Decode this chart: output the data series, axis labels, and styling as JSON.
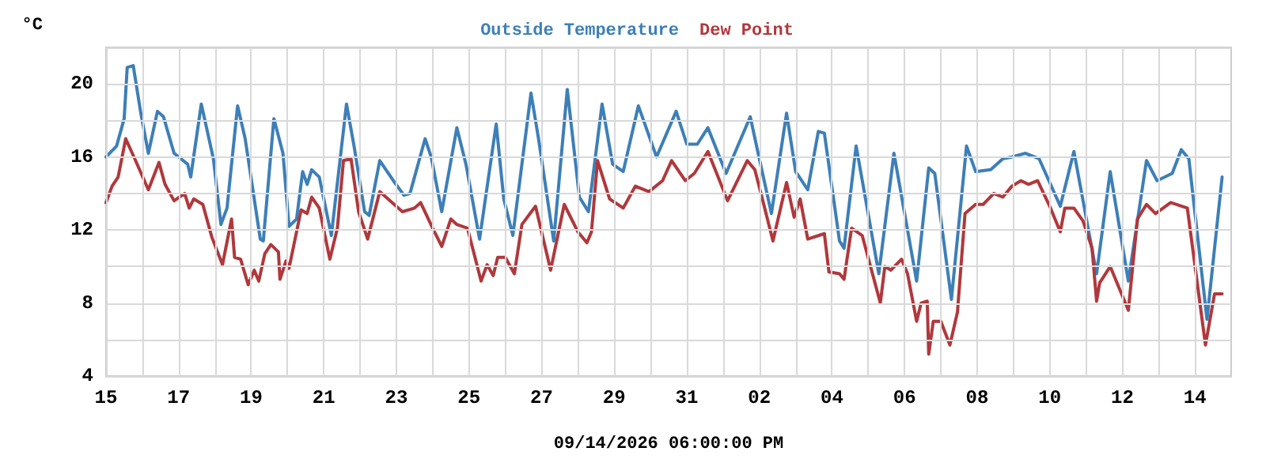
{
  "chart_data": {
    "type": "line",
    "ylabel": "°C",
    "xlabel": "09/14/2026 06:00:00 PM",
    "legend": "top",
    "grid": true,
    "marker": "none",
    "line_style": "solid",
    "xlim": [
      "2026-08-15",
      "2026-09-15"
    ],
    "xticks": [
      {
        "value": "2026-08-15",
        "label": "15"
      },
      {
        "value": "2026-08-16",
        "label": null
      },
      {
        "value": "2026-08-17",
        "label": "17"
      },
      {
        "value": "2026-08-18",
        "label": null
      },
      {
        "value": "2026-08-19",
        "label": "19"
      },
      {
        "value": "2026-08-20",
        "label": null
      },
      {
        "value": "2026-08-21",
        "label": "21"
      },
      {
        "value": "2026-08-22",
        "label": null
      },
      {
        "value": "2026-08-23",
        "label": "23"
      },
      {
        "value": "2026-08-24",
        "label": null
      },
      {
        "value": "2026-08-25",
        "label": "25"
      },
      {
        "value": "2026-08-26",
        "label": null
      },
      {
        "value": "2026-08-27",
        "label": "27"
      },
      {
        "value": "2026-08-28",
        "label": null
      },
      {
        "value": "2026-08-29",
        "label": "29"
      },
      {
        "value": "2026-08-30",
        "label": null
      },
      {
        "value": "2026-08-31",
        "label": "31"
      },
      {
        "value": "2026-09-01",
        "label": null
      },
      {
        "value": "2026-09-02",
        "label": "02"
      },
      {
        "value": "2026-09-03",
        "label": null
      },
      {
        "value": "2026-09-04",
        "label": "04"
      },
      {
        "value": "2026-09-05",
        "label": null
      },
      {
        "value": "2026-09-06",
        "label": "06"
      },
      {
        "value": "2026-09-07",
        "label": null
      },
      {
        "value": "2026-09-08",
        "label": "08"
      },
      {
        "value": "2026-09-09",
        "label": null
      },
      {
        "value": "2026-09-10",
        "label": "10"
      },
      {
        "value": "2026-09-11",
        "label": null
      },
      {
        "value": "2026-09-12",
        "label": "12"
      },
      {
        "value": "2026-09-13",
        "label": null
      },
      {
        "value": "2026-09-14",
        "label": "14"
      }
    ],
    "ylim": [
      4,
      22
    ],
    "yticks": [
      4,
      {
        "value": 6,
        "label": null
      },
      8,
      {
        "value": 10,
        "label": null
      },
      12,
      {
        "value": 14,
        "label": null
      },
      16,
      {
        "value": 18,
        "label": null
      },
      20,
      {
        "value": 22,
        "label": null
      }
    ],
    "series": [
      {
        "name": "Outside Temperature",
        "color": "#3d7fb8",
        "x": [
          "2026-08-15T00:00",
          "2026-08-15T07:00",
          "2026-08-15T12:00",
          "2026-08-15T14:00",
          "2026-08-15T18:00",
          "2026-08-15T23:00",
          "2026-08-16T04:00",
          "2026-08-16T10:00",
          "2026-08-16T14:00",
          "2026-08-16T21:00",
          "2026-08-17T06:00",
          "2026-08-17T08:00",
          "2026-08-17T15:00",
          "2026-08-17T23:00",
          "2026-08-18T04:00",
          "2026-08-18T08:00",
          "2026-08-18T15:00",
          "2026-08-18T20:00",
          "2026-08-19T06:00",
          "2026-08-19T08:00",
          "2026-08-19T15:00",
          "2026-08-19T21:00",
          "2026-08-20T01:00",
          "2026-08-20T06:00",
          "2026-08-20T10:00",
          "2026-08-20T13:00",
          "2026-08-20T16:00",
          "2026-08-20T21:00",
          "2026-08-21T05:00",
          "2026-08-21T15:00",
          "2026-08-21T20:00",
          "2026-08-22T03:00",
          "2026-08-22T06:00",
          "2026-08-22T13:00",
          "2026-08-22T22:00",
          "2026-08-23T05:00",
          "2026-08-23T09:00",
          "2026-08-23T19:00",
          "2026-08-23T23:00",
          "2026-08-24T06:00",
          "2026-08-24T16:00",
          "2026-08-24T22:00",
          "2026-08-25T07:00",
          "2026-08-25T18:00",
          "2026-08-25T23:00",
          "2026-08-26T05:00",
          "2026-08-26T17:00",
          "2026-08-26T22:00",
          "2026-08-27T08:00",
          "2026-08-27T17:00",
          "2026-08-28T01:00",
          "2026-08-28T07:00",
          "2026-08-28T16:00",
          "2026-08-28T23:00",
          "2026-08-29T06:00",
          "2026-08-29T16:00",
          "2026-08-30T04:00",
          "2026-08-30T17:00",
          "2026-08-31T00:00",
          "2026-08-31T07:00",
          "2026-08-31T14:00",
          "2026-09-01T02:00",
          "2026-09-01T18:00",
          "2026-09-02T00:00",
          "2026-09-02T08:00",
          "2026-09-02T18:00",
          "2026-09-03T00:00",
          "2026-09-03T08:00",
          "2026-09-03T15:00",
          "2026-09-03T19:00",
          "2026-09-04T05:00",
          "2026-09-04T08:00",
          "2026-09-04T16:00",
          "2026-09-05T07:00",
          "2026-09-05T17:00",
          "2026-09-06T08:00",
          "2026-09-06T16:00",
          "2026-09-06T20:00",
          "2026-09-07T07:00",
          "2026-09-07T17:00",
          "2026-09-07T23:00",
          "2026-09-08T09:00",
          "2026-09-08T17:00",
          "2026-09-08T23:00",
          "2026-09-09T08:00",
          "2026-09-09T17:00",
          "2026-09-10T07:00",
          "2026-09-10T16:00",
          "2026-09-11T07:00",
          "2026-09-11T16:00",
          "2026-09-12T04:00",
          "2026-09-12T16:00",
          "2026-09-12T23:00",
          "2026-09-13T09:00",
          "2026-09-13T15:00",
          "2026-09-13T20:00",
          "2026-09-14T08:00",
          "2026-09-14T18:00"
        ],
        "values": [
          16.0,
          16.6,
          18.1,
          20.9,
          21.0,
          18.4,
          16.2,
          18.5,
          18.2,
          16.2,
          15.6,
          14.9,
          18.9,
          15.9,
          12.3,
          13.2,
          18.8,
          17.0,
          11.5,
          11.4,
          18.1,
          16.2,
          12.2,
          12.6,
          15.2,
          14.5,
          15.3,
          14.9,
          11.7,
          18.9,
          16.6,
          13.0,
          12.8,
          15.8,
          14.7,
          13.9,
          14.0,
          17.0,
          16.0,
          13.0,
          17.6,
          15.6,
          11.5,
          17.8,
          13.7,
          11.7,
          19.5,
          17.0,
          11.4,
          19.7,
          13.8,
          13.0,
          18.9,
          15.6,
          15.2,
          18.8,
          16.0,
          18.5,
          16.7,
          16.7,
          17.6,
          15.1,
          18.2,
          15.9,
          12.9,
          18.4,
          15.2,
          14.2,
          17.4,
          17.3,
          11.4,
          11.0,
          16.6,
          9.6,
          16.2,
          9.2,
          15.4,
          15.1,
          8.2,
          16.6,
          15.2,
          15.3,
          15.9,
          16.0,
          16.2,
          15.9,
          13.3,
          16.3,
          9.6,
          15.2,
          9.2,
          15.8,
          14.7,
          15.1,
          16.4,
          15.9,
          7.1,
          14.9
        ]
      },
      {
        "name": "Dew Point",
        "color": "#b0383c",
        "x": [
          "2026-08-15T00:00",
          "2026-08-15T04:00",
          "2026-08-15T08:00",
          "2026-08-15T13:00",
          "2026-08-15T19:00",
          "2026-08-16T04:00",
          "2026-08-16T11:00",
          "2026-08-16T15:00",
          "2026-08-16T21:00",
          "2026-08-17T04:00",
          "2026-08-17T07:00",
          "2026-08-17T10:00",
          "2026-08-17T16:00",
          "2026-08-17T22:00",
          "2026-08-18T05:00",
          "2026-08-18T11:00",
          "2026-08-18T13:00",
          "2026-08-18T17:00",
          "2026-08-18T22:00",
          "2026-08-19T02:00",
          "2026-08-19T05:00",
          "2026-08-19T09:00",
          "2026-08-19T13:00",
          "2026-08-19T18:00",
          "2026-08-19T19:00",
          "2026-08-19T23:00",
          "2026-08-20T01:00",
          "2026-08-20T09:00",
          "2026-08-20T13:00",
          "2026-08-20T16:00",
          "2026-08-20T21:00",
          "2026-08-21T04:00",
          "2026-08-21T09:00",
          "2026-08-21T13:00",
          "2026-08-21T18:00",
          "2026-08-21T23:00",
          "2026-08-22T05:00",
          "2026-08-22T13:00",
          "2026-08-23T04:00",
          "2026-08-23T12:00",
          "2026-08-23T16:00",
          "2026-08-24T00:00",
          "2026-08-24T06:00",
          "2026-08-24T12:00",
          "2026-08-24T16:00",
          "2026-08-24T23:00",
          "2026-08-25T08:00",
          "2026-08-25T12:00",
          "2026-08-25T16:00",
          "2026-08-25T19:00",
          "2026-08-26T00:00",
          "2026-08-26T06:00",
          "2026-08-26T11:00",
          "2026-08-26T20:00",
          "2026-08-27T06:00",
          "2026-08-27T15:00",
          "2026-08-28T00:00",
          "2026-08-28T06:00",
          "2026-08-28T09:00",
          "2026-08-28T13:00",
          "2026-08-28T21:00",
          "2026-08-29T06:00",
          "2026-08-29T14:00",
          "2026-08-29T23:00",
          "2026-08-30T08:00",
          "2026-08-30T14:00",
          "2026-08-30T23:00",
          "2026-08-31T05:00",
          "2026-08-31T14:00",
          "2026-09-01T03:00",
          "2026-09-01T16:00",
          "2026-09-01T21:00",
          "2026-09-02T02:00",
          "2026-09-02T09:00",
          "2026-09-02T18:00",
          "2026-09-02T23:00",
          "2026-09-03T03:00",
          "2026-09-03T08:00",
          "2026-09-03T19:00",
          "2026-09-03T22:00",
          "2026-09-04T05:00",
          "2026-09-04T08:00",
          "2026-09-04T13:00",
          "2026-09-04T20:00",
          "2026-09-05T08:00",
          "2026-09-05T11:00",
          "2026-09-05T15:00",
          "2026-09-05T22:00",
          "2026-09-06T02:00",
          "2026-09-06T08:00",
          "2026-09-06T11:00",
          "2026-09-06T15:00",
          "2026-09-06T16:00",
          "2026-09-06T19:00",
          "2026-09-07T00:00",
          "2026-09-07T06:00",
          "2026-09-07T11:00",
          "2026-09-07T16:00",
          "2026-09-07T23:00",
          "2026-09-08T04:00",
          "2026-09-08T11:00",
          "2026-09-08T17:00",
          "2026-09-08T23:00",
          "2026-09-09T05:00",
          "2026-09-09T10:00",
          "2026-09-09T16:00",
          "2026-09-10T00:00",
          "2026-09-10T07:00",
          "2026-09-10T10:00",
          "2026-09-10T16:00",
          "2026-09-10T22:00",
          "2026-09-11T04:00",
          "2026-09-11T07:00",
          "2026-09-11T09:00",
          "2026-09-11T16:00",
          "2026-09-12T04:00",
          "2026-09-12T10:00",
          "2026-09-12T16:00",
          "2026-09-12T22:00",
          "2026-09-13T08:00",
          "2026-09-13T19:00",
          "2026-09-14T07:00",
          "2026-09-14T13:00",
          "2026-09-14T18:00"
        ],
        "values": [
          13.5,
          14.4,
          14.9,
          17.0,
          15.9,
          14.2,
          15.7,
          14.5,
          13.6,
          14.0,
          13.2,
          13.7,
          13.4,
          11.6,
          10.1,
          12.6,
          10.5,
          10.4,
          9.0,
          9.8,
          9.2,
          10.7,
          11.2,
          10.8,
          9.3,
          10.3,
          9.9,
          13.1,
          12.9,
          13.8,
          13.2,
          10.4,
          12.1,
          15.8,
          15.9,
          13.0,
          11.5,
          14.1,
          13.0,
          13.2,
          13.5,
          12.1,
          11.1,
          12.6,
          12.3,
          12.1,
          9.2,
          10.1,
          9.5,
          10.5,
          10.5,
          9.6,
          12.3,
          13.3,
          9.8,
          13.4,
          11.9,
          11.3,
          11.9,
          15.8,
          13.7,
          13.2,
          14.4,
          14.1,
          14.7,
          15.8,
          14.7,
          15.1,
          16.3,
          13.6,
          15.8,
          15.3,
          13.7,
          11.4,
          14.6,
          12.7,
          13.7,
          11.5,
          11.8,
          9.7,
          9.6,
          9.3,
          12.1,
          11.7,
          8.0,
          10.0,
          9.8,
          10.4,
          9.6,
          7.0,
          8.0,
          8.1,
          5.2,
          7.0,
          7.0,
          5.7,
          7.5,
          12.9,
          13.4,
          13.4,
          14.0,
          13.8,
          14.4,
          14.7,
          14.5,
          14.7,
          13.3,
          11.9,
          13.2,
          13.2,
          12.5,
          11.0,
          8.1,
          9.1,
          10.0,
          7.6,
          12.6,
          13.4,
          12.9,
          13.5,
          13.2,
          5.7,
          8.5,
          8.5
        ]
      }
    ]
  }
}
